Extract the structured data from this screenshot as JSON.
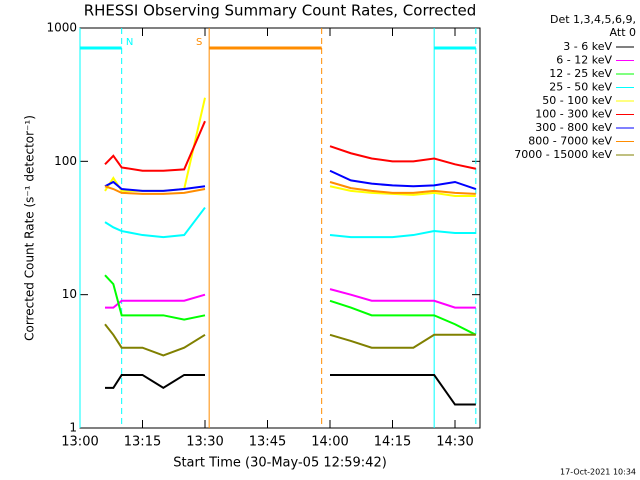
{
  "chart_data": {
    "type": "line",
    "title": "RHESSI Observing Summary Count Rates, Corrected",
    "x_label": "Start Time (30-May-05 12:59:42)",
    "y_label": "Corrected Count Rate (s⁻¹ detector⁻¹)",
    "footer": "17-Oct-2021 10:34",
    "legend_title": [
      "Det 1,3,4,5,6,9,",
      "Att 0"
    ],
    "legend_position": "right",
    "y_scale": "log",
    "xlim": [
      "13:00",
      "14:36"
    ],
    "ylim": [
      1,
      1000
    ],
    "xticks": [
      "13:00",
      "13:15",
      "13:30",
      "13:45",
      "14:00",
      "14:15",
      "14:30"
    ],
    "yticks": [
      1,
      10,
      100,
      1000
    ],
    "x": [
      "13:06",
      "13:08",
      "13:10",
      "13:15",
      "13:20",
      "13:25",
      "13:30",
      "13:45",
      "14:00",
      "14:05",
      "14:10",
      "14:15",
      "14:20",
      "14:25",
      "14:30",
      "14:35"
    ],
    "series": [
      {
        "name": "3 - 6 keV",
        "color": "#000000",
        "values": [
          2,
          2,
          2.5,
          2.5,
          2,
          2.5,
          2.5,
          null,
          2.5,
          2.5,
          2.5,
          2.5,
          2.5,
          2.5,
          1.5,
          1.5
        ]
      },
      {
        "name": "6 - 12 keV",
        "color": "#ff00ff",
        "values": [
          8,
          8,
          9,
          9,
          9,
          9,
          10,
          null,
          11,
          10,
          9,
          9,
          9,
          9,
          8,
          8
        ]
      },
      {
        "name": "12 - 25 keV",
        "color": "#00ff00",
        "values": [
          14,
          12,
          7,
          7,
          7,
          6.5,
          7,
          null,
          9,
          8,
          7,
          7,
          7,
          7,
          6,
          5
        ]
      },
      {
        "name": "25 - 50 keV",
        "color": "#00ffff",
        "values": [
          35,
          32,
          30,
          28,
          27,
          28,
          45,
          null,
          28,
          27,
          27,
          27,
          28,
          30,
          29,
          29
        ]
      },
      {
        "name": "50 - 100 keV",
        "color": "#ffff00",
        "values": [
          60,
          75,
          60,
          60,
          60,
          62,
          300,
          null,
          65,
          60,
          58,
          57,
          56,
          58,
          55,
          55
        ]
      },
      {
        "name": "100 - 300 keV",
        "color": "#ff0000",
        "values": [
          95,
          110,
          90,
          85,
          85,
          87,
          200,
          null,
          130,
          115,
          105,
          100,
          100,
          105,
          95,
          88
        ]
      },
      {
        "name": "300 - 800 keV",
        "color": "#0000ff",
        "values": [
          65,
          70,
          62,
          60,
          60,
          62,
          65,
          null,
          85,
          72,
          68,
          66,
          65,
          66,
          70,
          62
        ]
      },
      {
        "name": "800 - 7000 keV",
        "color": "#ff8c00",
        "values": [
          65,
          62,
          58,
          57,
          57,
          58,
          62,
          null,
          70,
          63,
          60,
          58,
          58,
          60,
          58,
          57
        ]
      },
      {
        "name": "7000 - 15000 keV",
        "color": "#808000",
        "values": [
          6,
          5,
          4,
          4,
          3.5,
          4,
          5,
          null,
          5,
          4.5,
          4,
          4,
          4,
          5,
          5,
          5
        ]
      }
    ],
    "annotations": [
      {
        "label": "N",
        "start": "13:00",
        "end": "13:10",
        "color": "#00ffff"
      },
      {
        "label": "S",
        "start": "13:31",
        "end": "13:58",
        "color": "#ff8c00"
      },
      {
        "label": null,
        "start": "14:25",
        "end": "14:35",
        "color": "#00ffff"
      }
    ]
  }
}
